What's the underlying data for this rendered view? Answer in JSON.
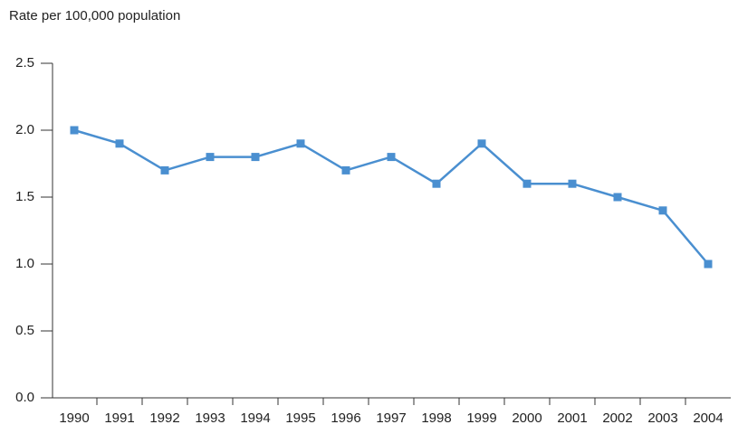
{
  "chart_data": {
    "type": "line",
    "y_axis_label": "Rate per 100,000 population",
    "categories": [
      "1990",
      "1991",
      "1992",
      "1993",
      "1994",
      "1995",
      "1996",
      "1997",
      "1998",
      "1999",
      "2000",
      "2001",
      "2002",
      "2003",
      "2004"
    ],
    "series": [
      {
        "color": "#4a8fd0",
        "values": [
          2.0,
          1.9,
          1.7,
          1.8,
          1.8,
          1.9,
          1.7,
          1.8,
          1.6,
          1.9,
          1.6,
          1.6,
          1.5,
          1.4,
          1.0
        ]
      }
    ],
    "ylim": [
      0,
      2.5
    ],
    "yticks": [
      {
        "value": 0,
        "label": "0.0"
      },
      0.5,
      {
        "value": 1,
        "label": "1.0"
      },
      1.5,
      {
        "value": 2,
        "label": "2.0"
      },
      2.5
    ],
    "grid": false
  }
}
